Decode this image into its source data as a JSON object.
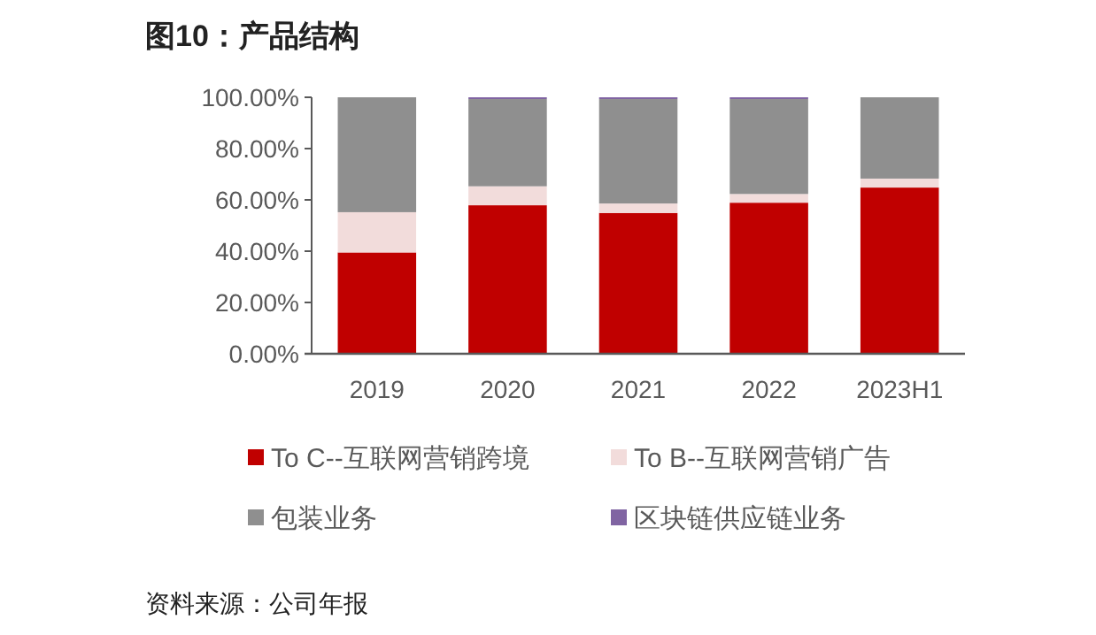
{
  "chart_data": {
    "type": "bar",
    "title": "图10：产品结构",
    "stacked": true,
    "categories": [
      "2019",
      "2020",
      "2021",
      "2022",
      "2023H1"
    ],
    "series": [
      {
        "name": "To C--互联网营销跨境",
        "color": "#c00000",
        "values": [
          39.5,
          57.9,
          54.9,
          58.9,
          64.8
        ]
      },
      {
        "name": "To B--互联网营销广告",
        "color": "#f2dcdb",
        "values": [
          15.7,
          7.4,
          3.7,
          3.4,
          3.5
        ]
      },
      {
        "name": "包装业务",
        "color": "#8f8f8f",
        "values": [
          44.8,
          34.0,
          40.7,
          37.0,
          31.7
        ]
      },
      {
        "name": "区块链供应链业务",
        "color": "#8064a2",
        "values": [
          0,
          0.7,
          0.7,
          0.7,
          0
        ]
      }
    ],
    "ylim": [
      0,
      100
    ],
    "yticks": [
      {
        "value": 0,
        "label": "0.00%"
      },
      {
        "value": 20,
        "label": "20.00%"
      },
      {
        "value": 40,
        "label": "40.00%"
      },
      {
        "value": 60,
        "label": "60.00%"
      },
      {
        "value": 80,
        "label": "80.00%"
      },
      {
        "value": 100,
        "label": "100.00%"
      }
    ],
    "grid": false,
    "legend": "bottom",
    "annotations": [
      "资料来源：公司年报"
    ]
  }
}
